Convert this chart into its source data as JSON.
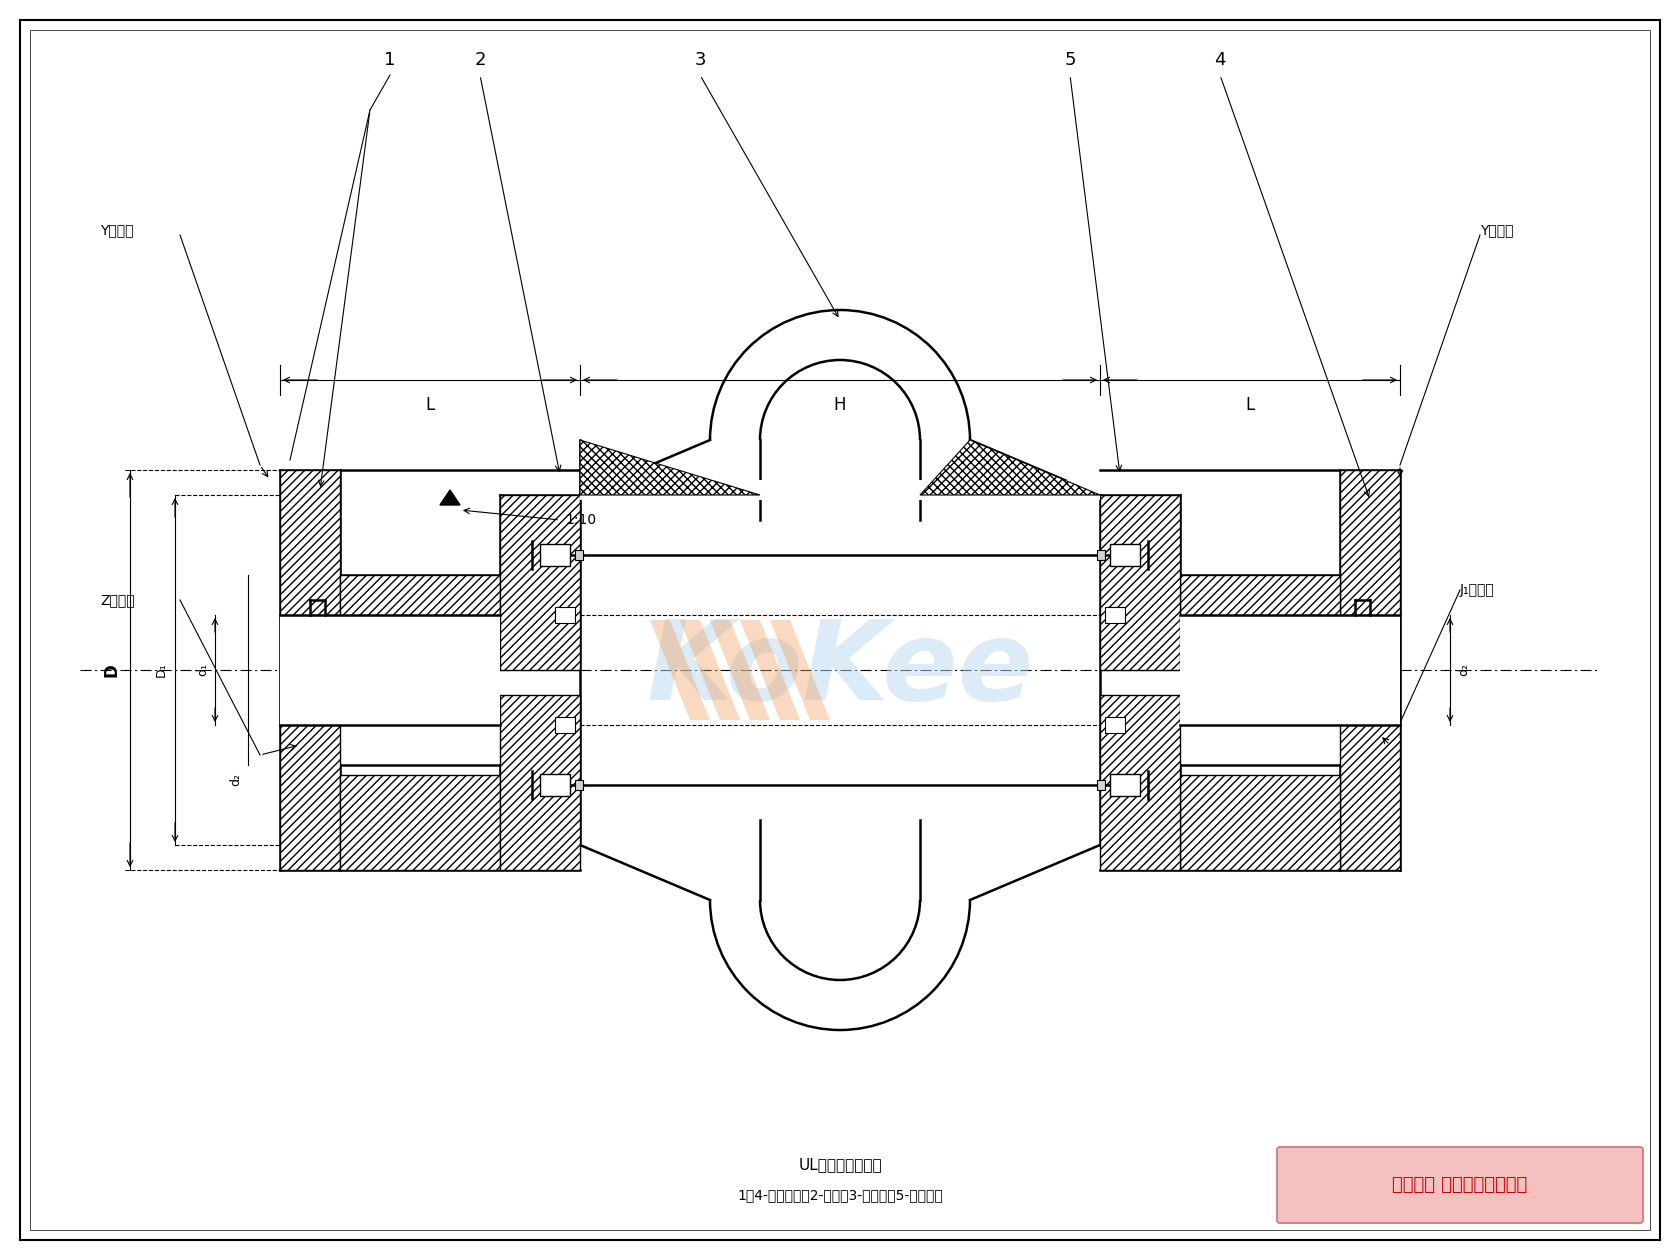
{
  "bg_color": "#ffffff",
  "line_color": "#000000",
  "hatch_color": "#000000",
  "watermark_color": "#a8c8e8",
  "title_text": "UL型轮胎式联轴器",
  "subtitle_text": "1、4-半联轴器；2-螺栓；3-轮胎环；5-止退垫板",
  "copyright_text": "版权所有 侵权必被严厉追究",
  "label_1": "1",
  "label_2": "2",
  "label_3": "3",
  "label_4": "4",
  "label_5": "5",
  "label_Y1": "Y型轴孔",
  "label_Y2": "Y型轴孔",
  "label_Z": "Z型轴孔",
  "label_J1": "J₁型轴孔",
  "label_D": "D",
  "label_D1": "D₁",
  "label_d1": "d₁",
  "label_d2": "d₂",
  "label_d2r": "d₂",
  "label_L": "L",
  "label_H": "H",
  "label_taper": "1:10",
  "dim_color": "#000000",
  "font_size_label": 11,
  "font_size_dim": 10,
  "font_size_title": 10,
  "font_size_copyright": 13
}
